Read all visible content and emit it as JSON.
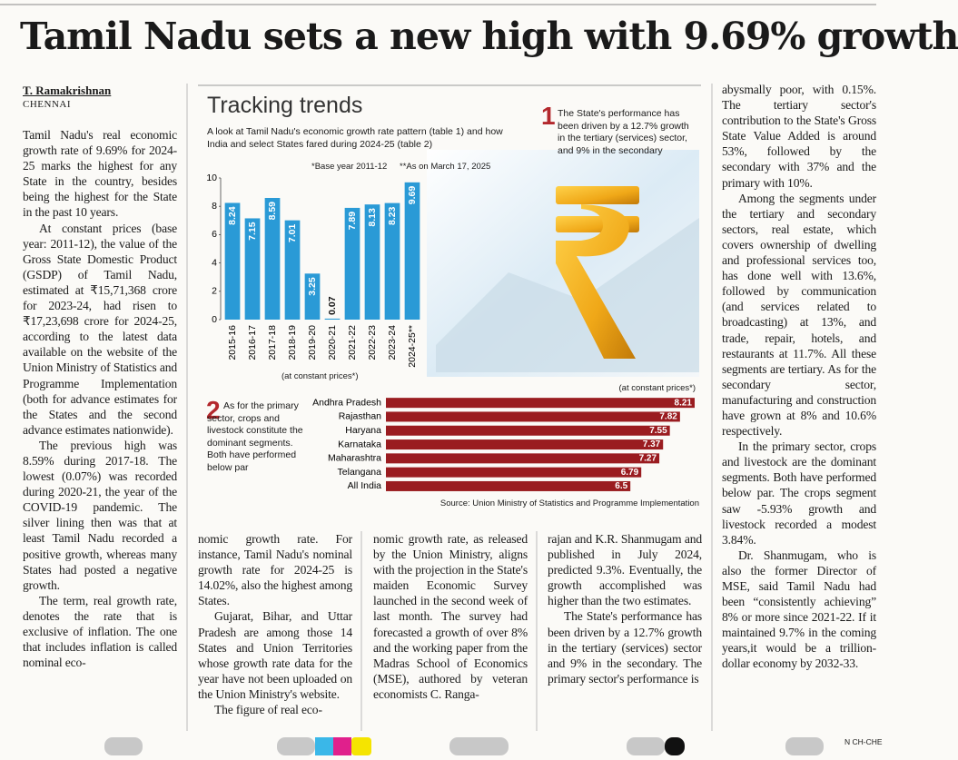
{
  "headline": "Tamil Nadu sets a new high with 9.69% growth",
  "byline": {
    "author": "T. Ramakrishnan",
    "location": "CHENNAI"
  },
  "columns": [
    {
      "paragraphs": [
        "Tamil Nadu's real economic growth rate of 9.69% for 2024-25 marks the highest for any State in the country, besides being the highest for the State in the past 10 years.",
        "At constant prices (base year: 2011-12), the value of the Gross State Domestic Product (GSDP) of Tamil Nadu, estimated at ₹15,71,368 crore for 2023-24, had risen to ₹17,23,698 crore for 2024-25, according to the latest data available on the website of the Union Ministry of Statistics and Programme Implementation (both for advance estimates for the States and the second advance estimates nationwide).",
        "The previous high was 8.59% during 2017-18. The lowest (0.07%) was recorded during 2020-21, the year of the COVID-19 pandemic. The silver lining then was that at least Tamil Nadu recorded a positive growth, whereas many States had posted a negative growth.",
        "The term, real growth rate, denotes the rate that is exclusive of inflation. The one that includes inflation is called nominal eco-"
      ]
    },
    {
      "paragraphs": [
        "nomic growth rate. For instance, Tamil Nadu's nominal growth rate for 2024-25 is 14.02%, also the highest among States.",
        "Gujarat, Bihar, and Uttar Pradesh are among those 14 States and Union Territories whose growth rate data for the year have not been uploaded on the Union Ministry's website.",
        "The figure of real eco-"
      ]
    },
    {
      "paragraphs": [
        "nomic growth rate, as released by the Union Ministry, aligns with the projection in the State's maiden Economic Survey launched in the second week of last month. The survey had forecasted a growth of over 8% and the working paper from the Madras School of Economics (MSE), authored by veteran economists C. Ranga-"
      ]
    },
    {
      "paragraphs": [
        "rajan and K.R. Shanmugam and published in July 2024, predicted 9.3%. Eventually, the growth accomplished was higher than the two estimates.",
        "The State's performance has been driven by a 12.7% growth in the tertiary (services) sector and 9% in the secondary. The primary sector's performance is"
      ]
    },
    {
      "paragraphs": [
        "abysmally poor, with 0.15%. The tertiary sector's contribution to the State's Gross State Value Added is around 53%, followed by the secondary with 37% and the primary with 10%.",
        "Among the segments under the tertiary and secondary sectors, real estate, which covers ownership of dwelling and professional services too, has done well with 13.6%, followed by communication (and services related to broadcasting) at 13%, and trade, repair, hotels, and restaurants at 11.7%. All these segments are tertiary. As for the secondary sector, manufacturing and construction have grown at 8% and 10.6% respectively.",
        "In the primary sector, crops and livestock are the dominant segments. Both have performed below par. The crops segment saw -5.93% growth and livestock recorded a modest 3.84%.",
        "Dr. Shanmugam, who is also the former Director of MSE, said Tamil Nadu had been “consistently achieving” 8% or more since 2021-22. If it maintained 9.7% in the coming years,it would be a trillion-dollar economy by 2032-33."
      ]
    }
  ],
  "graphic": {
    "title": "Tracking trends",
    "subtitle": "A look at Tamil Nadu's economic growth rate pattern (table 1) and how India and select States fared during 2024-25 (table 2)",
    "notes": [
      "*Base year 2011-12",
      "**As on March 17, 2025"
    ],
    "annotations": [
      {
        "number": "1",
        "text": "The State's performance has been driven by a 12.7% growth in the tertiary (services) sector, and 9% in the secondary"
      },
      {
        "number": "2",
        "text": "As for the primary sector, crops and livestock constitute the dominant segments. Both have performed below par"
      }
    ],
    "source": "Source: Union Ministry of Statistics and Programme Implementation"
  },
  "chart_data": [
    {
      "type": "bar",
      "x_label": "(at constant prices*)",
      "categories": [
        "2015-16",
        "2016-17",
        "2017-18",
        "2018-19",
        "2019-20",
        "2020-21",
        "2021-22",
        "2022-23",
        "2023-24",
        "2024-25**"
      ],
      "values": [
        8.24,
        7.15,
        8.59,
        7.01,
        3.25,
        0.07,
        7.89,
        8.13,
        8.23,
        9.69
      ],
      "color": "#2a9ad6",
      "ylim": [
        0,
        10
      ],
      "yticks": [
        0,
        2,
        4,
        6,
        8,
        10
      ]
    },
    {
      "type": "hbar",
      "note": "(at constant prices*)",
      "categories": [
        "Andhra Pradesh",
        "Rajasthan",
        "Haryana",
        "Karnataka",
        "Maharashtra",
        "Telangana",
        "All India"
      ],
      "values": [
        8.21,
        7.82,
        7.55,
        7.37,
        7.27,
        6.79,
        6.5
      ],
      "color": "#9a1c20"
    }
  ],
  "footer_code": "N CH-CHE"
}
